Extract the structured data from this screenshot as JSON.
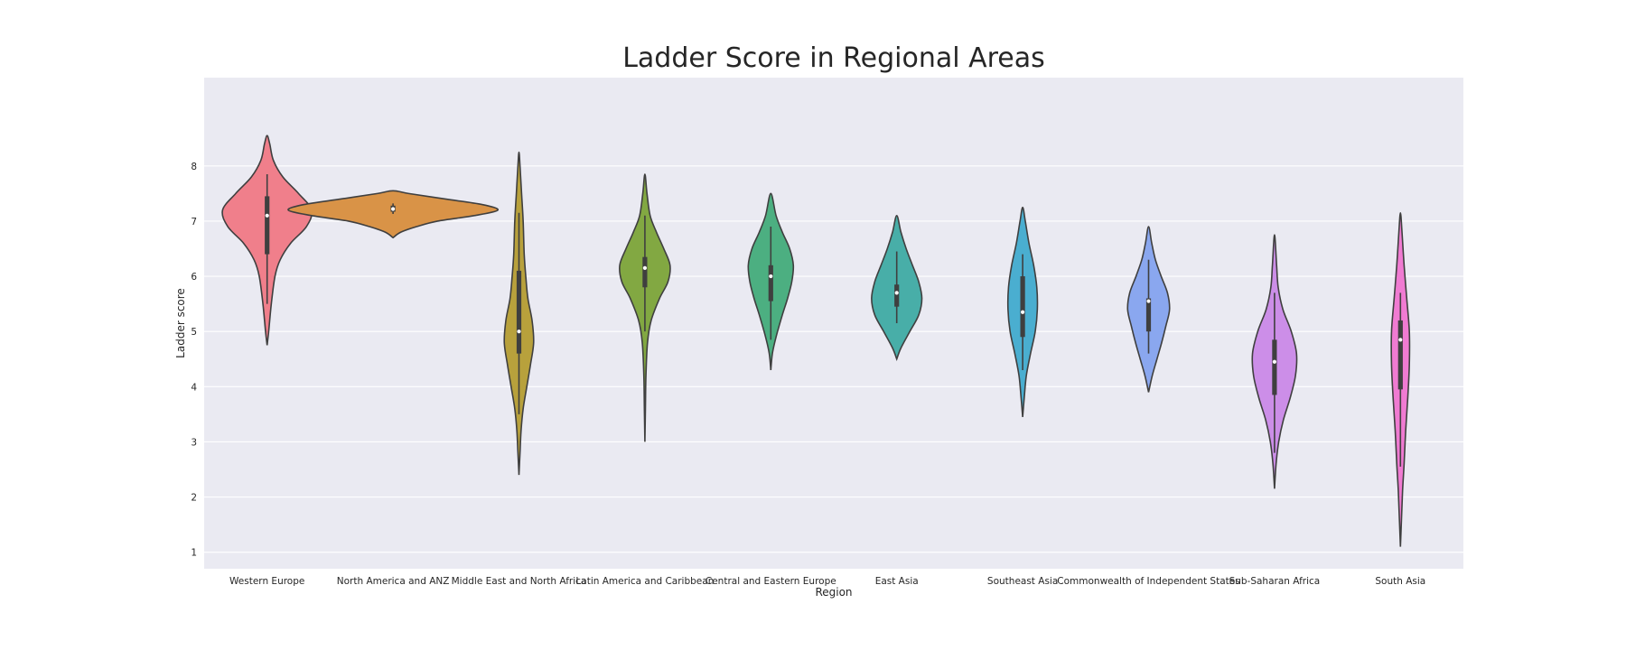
{
  "chart_data": {
    "type": "violin",
    "title": "Ladder Score in Regional Areas",
    "xlabel": "Region",
    "ylabel": "Ladder score",
    "ylim": [
      0.7,
      9.6
    ],
    "yticks": [
      1,
      2,
      3,
      4,
      5,
      6,
      7,
      8
    ],
    "grid": true,
    "legend": "none",
    "background": "#eaeaf2",
    "categories": [
      "Western Europe",
      "North America and ANZ",
      "Middle East and North Africa",
      "Latin America and Caribbean",
      "Central and Eastern Europe",
      "East Asia",
      "Southeast Asia",
      "Commonwealth of Independent States",
      "Sub-Saharan Africa",
      "South Asia"
    ],
    "violins": [
      {
        "color": "#f07f8b",
        "y_min": 4.75,
        "y_max": 8.55,
        "q1": 6.4,
        "median": 7.1,
        "q3": 7.45,
        "whisker_low": 5.5,
        "whisker_high": 7.85,
        "profile": [
          [
            4.75,
            0
          ],
          [
            5.0,
            0.03
          ],
          [
            5.5,
            0.08
          ],
          [
            6.0,
            0.15
          ],
          [
            6.3,
            0.25
          ],
          [
            6.6,
            0.45
          ],
          [
            6.9,
            0.75
          ],
          [
            7.2,
            0.85
          ],
          [
            7.5,
            0.6
          ],
          [
            7.8,
            0.3
          ],
          [
            8.1,
            0.12
          ],
          [
            8.4,
            0.05
          ],
          [
            8.55,
            0
          ]
        ]
      },
      {
        "color": "#d99347",
        "y_min": 6.7,
        "y_max": 7.55,
        "q1": 7.17,
        "median": 7.22,
        "q3": 7.28,
        "whisker_low": 7.13,
        "whisker_high": 7.32,
        "profile": [
          [
            6.7,
            0
          ],
          [
            6.8,
            0.15
          ],
          [
            6.9,
            0.45
          ],
          [
            7.0,
            0.85
          ],
          [
            7.1,
            1.55
          ],
          [
            7.2,
            2.0
          ],
          [
            7.3,
            1.7
          ],
          [
            7.4,
            1.0
          ],
          [
            7.5,
            0.3
          ],
          [
            7.55,
            0
          ]
        ]
      },
      {
        "color": "#b8a13c",
        "y_min": 2.4,
        "y_max": 8.25,
        "q1": 4.6,
        "median": 5.0,
        "q3": 6.1,
        "whisker_low": 3.5,
        "whisker_high": 7.15,
        "profile": [
          [
            2.4,
            0
          ],
          [
            2.8,
            0.02
          ],
          [
            3.2,
            0.04
          ],
          [
            3.6,
            0.08
          ],
          [
            4.0,
            0.15
          ],
          [
            4.4,
            0.22
          ],
          [
            4.8,
            0.28
          ],
          [
            5.2,
            0.25
          ],
          [
            5.6,
            0.17
          ],
          [
            6.0,
            0.13
          ],
          [
            6.4,
            0.1
          ],
          [
            7.0,
            0.08
          ],
          [
            7.5,
            0.05
          ],
          [
            8.0,
            0.02
          ],
          [
            8.25,
            0
          ]
        ]
      },
      {
        "color": "#82a842",
        "y_min": 3.0,
        "y_max": 7.85,
        "q1": 5.8,
        "median": 6.15,
        "q3": 6.35,
        "whisker_low": 5.0,
        "whisker_high": 7.1,
        "profile": [
          [
            3.0,
            0
          ],
          [
            3.6,
            0.01
          ],
          [
            4.2,
            0.02
          ],
          [
            4.8,
            0.05
          ],
          [
            5.2,
            0.12
          ],
          [
            5.6,
            0.28
          ],
          [
            5.9,
            0.44
          ],
          [
            6.2,
            0.48
          ],
          [
            6.5,
            0.36
          ],
          [
            6.8,
            0.22
          ],
          [
            7.1,
            0.1
          ],
          [
            7.5,
            0.04
          ],
          [
            7.85,
            0
          ]
        ]
      },
      {
        "color": "#4caf81",
        "y_min": 4.3,
        "y_max": 7.5,
        "q1": 5.55,
        "median": 6.0,
        "q3": 6.2,
        "whisker_low": 4.85,
        "whisker_high": 6.9,
        "profile": [
          [
            4.3,
            0
          ],
          [
            4.6,
            0.03
          ],
          [
            4.9,
            0.1
          ],
          [
            5.3,
            0.22
          ],
          [
            5.6,
            0.32
          ],
          [
            5.9,
            0.4
          ],
          [
            6.2,
            0.43
          ],
          [
            6.5,
            0.36
          ],
          [
            6.8,
            0.22
          ],
          [
            7.1,
            0.1
          ],
          [
            7.5,
            0
          ]
        ]
      },
      {
        "color": "#48aea8",
        "y_min": 4.5,
        "y_max": 7.1,
        "q1": 5.45,
        "median": 5.7,
        "q3": 5.85,
        "whisker_low": 5.15,
        "whisker_high": 6.45,
        "profile": [
          [
            4.5,
            0
          ],
          [
            4.7,
            0.08
          ],
          [
            5.0,
            0.25
          ],
          [
            5.3,
            0.42
          ],
          [
            5.6,
            0.48
          ],
          [
            5.9,
            0.42
          ],
          [
            6.2,
            0.3
          ],
          [
            6.5,
            0.18
          ],
          [
            6.8,
            0.08
          ],
          [
            7.1,
            0
          ]
        ]
      },
      {
        "color": "#4aaed0",
        "y_min": 3.45,
        "y_max": 7.25,
        "q1": 4.9,
        "median": 5.35,
        "q3": 6.0,
        "whisker_low": 4.3,
        "whisker_high": 6.4,
        "profile": [
          [
            3.45,
            0
          ],
          [
            3.8,
            0.03
          ],
          [
            4.2,
            0.07
          ],
          [
            4.6,
            0.15
          ],
          [
            5.0,
            0.24
          ],
          [
            5.4,
            0.28
          ],
          [
            5.8,
            0.27
          ],
          [
            6.2,
            0.21
          ],
          [
            6.6,
            0.12
          ],
          [
            7.0,
            0.05
          ],
          [
            7.25,
            0
          ]
        ]
      },
      {
        "color": "#8aa7ef",
        "y_min": 3.9,
        "y_max": 6.9,
        "q1": 5.0,
        "median": 5.55,
        "q3": 5.6,
        "whisker_low": 4.6,
        "whisker_high": 6.3,
        "profile": [
          [
            3.9,
            0
          ],
          [
            4.2,
            0.07
          ],
          [
            4.5,
            0.16
          ],
          [
            4.8,
            0.25
          ],
          [
            5.1,
            0.33
          ],
          [
            5.4,
            0.4
          ],
          [
            5.7,
            0.36
          ],
          [
            6.0,
            0.24
          ],
          [
            6.3,
            0.13
          ],
          [
            6.6,
            0.06
          ],
          [
            6.9,
            0
          ]
        ]
      },
      {
        "color": "#cc8ee8",
        "y_min": 2.15,
        "y_max": 6.75,
        "q1": 3.85,
        "median": 4.45,
        "q3": 4.85,
        "whisker_low": 2.8,
        "whisker_high": 5.7,
        "profile": [
          [
            2.15,
            0
          ],
          [
            2.6,
            0.03
          ],
          [
            3.0,
            0.08
          ],
          [
            3.4,
            0.17
          ],
          [
            3.8,
            0.3
          ],
          [
            4.2,
            0.4
          ],
          [
            4.6,
            0.42
          ],
          [
            5.0,
            0.32
          ],
          [
            5.4,
            0.16
          ],
          [
            5.8,
            0.07
          ],
          [
            6.2,
            0.04
          ],
          [
            6.75,
            0
          ]
        ]
      },
      {
        "color": "#f07bd2",
        "y_min": 1.1,
        "y_max": 7.15,
        "q1": 3.95,
        "median": 4.85,
        "q3": 5.2,
        "whisker_low": 2.55,
        "whisker_high": 5.7,
        "profile": [
          [
            1.1,
            0
          ],
          [
            1.6,
            0.02
          ],
          [
            2.1,
            0.04
          ],
          [
            2.6,
            0.07
          ],
          [
            3.2,
            0.1
          ],
          [
            3.8,
            0.14
          ],
          [
            4.4,
            0.17
          ],
          [
            5.0,
            0.17
          ],
          [
            5.6,
            0.12
          ],
          [
            6.2,
            0.07
          ],
          [
            6.8,
            0.03
          ],
          [
            7.15,
            0
          ]
        ]
      }
    ]
  }
}
